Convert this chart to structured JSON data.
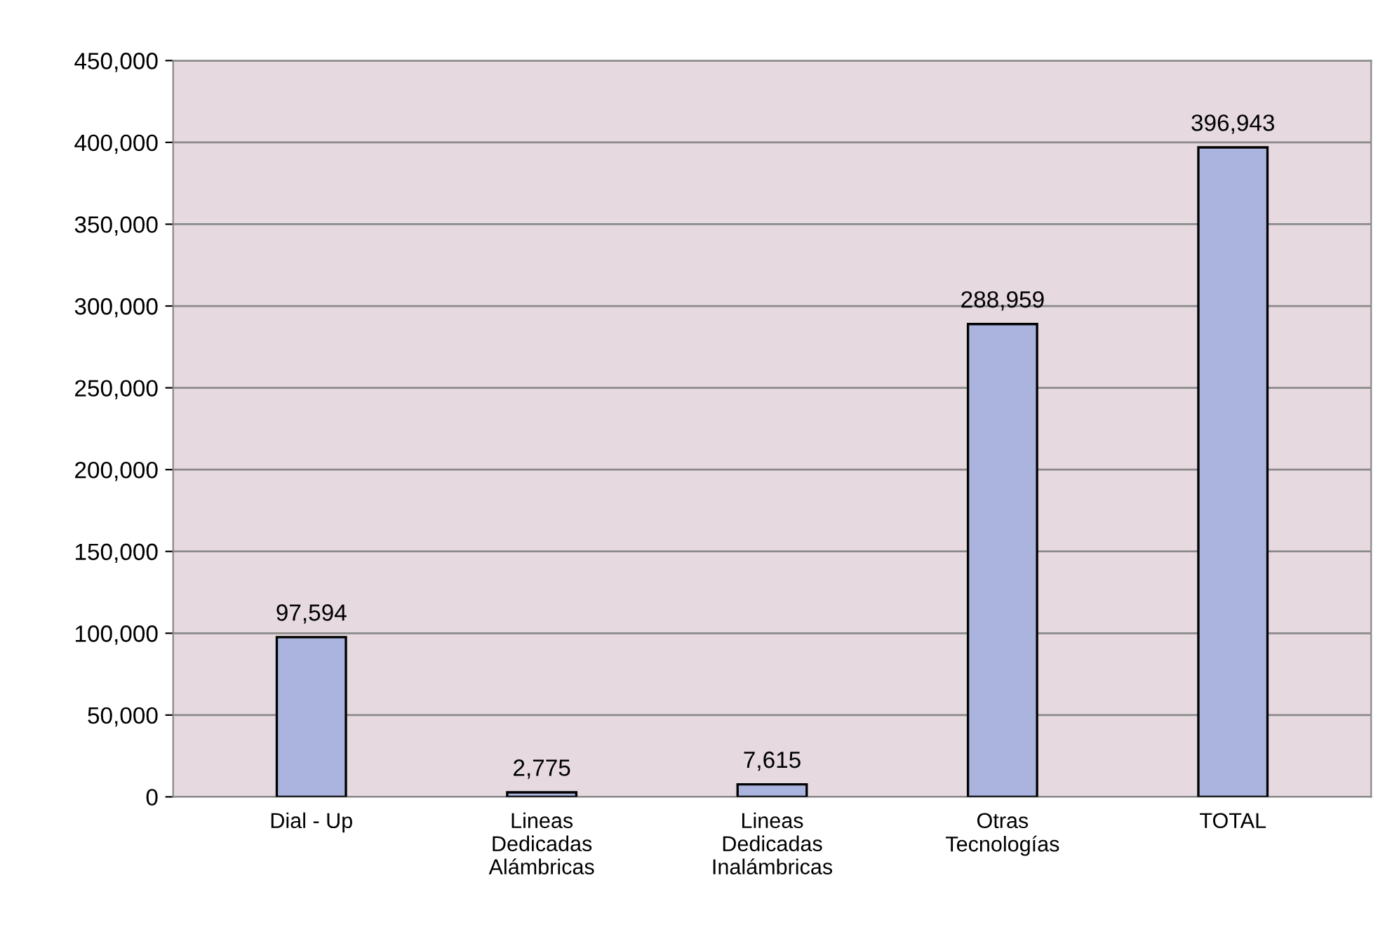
{
  "chart_data": {
    "type": "bar",
    "categories": [
      "Dial - Up",
      "Lineas\nDedicadas\nAlámbricas",
      "Lineas\nDedicadas\nInalámbricas",
      "Otras\nTecnologías",
      "TOTAL"
    ],
    "values": [
      97594,
      2775,
      7615,
      288959,
      396943
    ],
    "color": "#aab4de",
    "value_labels": [
      "97,594",
      "2,775",
      "7,615",
      "288,959",
      "396,943"
    ],
    "ylim": [
      0,
      450000
    ],
    "yticks": [
      {
        "value": 0,
        "label": "0"
      },
      {
        "value": 50000,
        "label": "50,000"
      },
      {
        "value": 100000,
        "label": "100,000"
      },
      {
        "value": 150000,
        "label": "150,000"
      },
      {
        "value": 200000,
        "label": "200,000"
      },
      {
        "value": 250000,
        "label": "250,000"
      },
      {
        "value": 300000,
        "label": "300,000"
      },
      {
        "value": 350000,
        "label": "350,000"
      },
      {
        "value": 400000,
        "label": "400,000"
      },
      {
        "value": 450000,
        "label": "450,000"
      }
    ],
    "grid": "y"
  }
}
